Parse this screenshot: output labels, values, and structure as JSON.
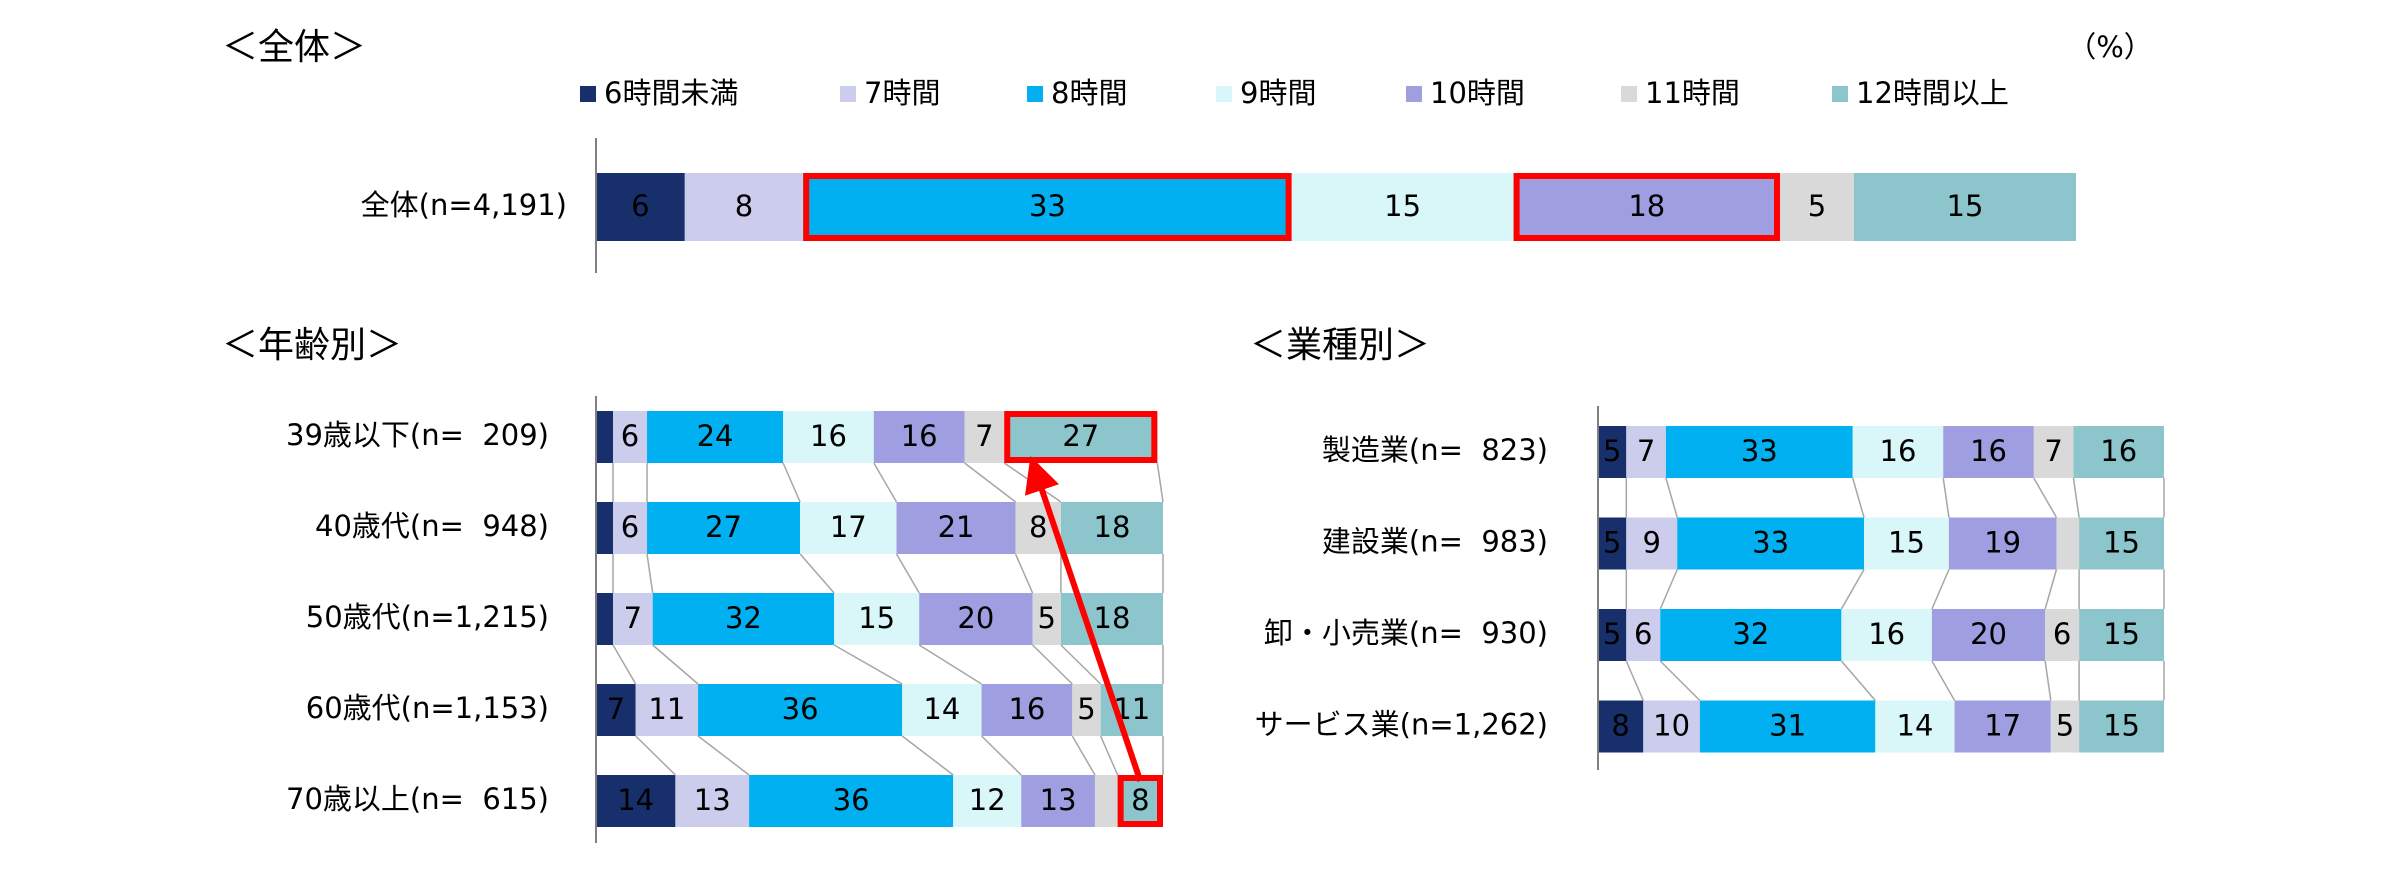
{
  "chart_data": [
    {
      "type": "bar",
      "orientation": "horizontal",
      "stacked": true,
      "title": "＜全体＞",
      "unit": "（%）",
      "categories": [
        "全体(n=4,191)"
      ],
      "series": [
        {
          "name": "6時間未満",
          "color": "#17306b",
          "values": [
            6
          ],
          "value_labels": [
            "6"
          ]
        },
        {
          "name": "7時間",
          "color": "#ccccec",
          "values": [
            8
          ],
          "value_labels": [
            "8"
          ]
        },
        {
          "name": "8時間",
          "color": "#00b0f0",
          "values": [
            33
          ],
          "value_labels": [
            "33"
          ]
        },
        {
          "name": "9時間",
          "color": "#d9f6f8",
          "values": [
            15
          ],
          "value_labels": [
            "15"
          ]
        },
        {
          "name": "10時間",
          "color": "#9e9ee0",
          "values": [
            18
          ],
          "value_labels": [
            "18"
          ]
        },
        {
          "name": "11時間",
          "color": "#d9d9d9",
          "values": [
            5
          ],
          "value_labels": [
            "5"
          ]
        },
        {
          "name": "12時間以上",
          "color": "#8cc6cc",
          "values": [
            15
          ],
          "value_labels": [
            "15"
          ]
        }
      ],
      "xlim": [
        0,
        100
      ],
      "legend": "top",
      "highlight": [
        [
          2,
          0
        ],
        [
          4,
          0
        ]
      ]
    },
    {
      "type": "bar",
      "orientation": "horizontal",
      "stacked": true,
      "title": "＜年齢別＞",
      "categories": [
        "39歳以下(n=  209)",
        "40歳代(n=  948)",
        "50歳代(n=1,215)",
        "60歳代(n=1,153)",
        "70歳以上(n=  615)"
      ],
      "series": [
        {
          "color": "#17306b",
          "values": [
            3,
            3,
            3,
            7,
            14
          ],
          "value_labels": [
            null,
            null,
            null,
            "7",
            "14"
          ]
        },
        {
          "color": "#ccccec",
          "values": [
            6,
            6,
            7,
            11,
            13
          ],
          "value_labels": [
            "6",
            "6",
            "7",
            "11",
            "13"
          ]
        },
        {
          "color": "#00b0f0",
          "values": [
            24,
            27,
            32,
            36,
            36
          ],
          "value_labels": [
            "24",
            "27",
            "32",
            "36",
            "36"
          ]
        },
        {
          "color": "#d9f6f8",
          "values": [
            16,
            17,
            15,
            14,
            12
          ],
          "value_labels": [
            "16",
            "17",
            "15",
            "14",
            "12"
          ]
        },
        {
          "color": "#9e9ee0",
          "values": [
            16,
            21,
            20,
            16,
            13
          ],
          "value_labels": [
            "16",
            "21",
            "20",
            "16",
            "13"
          ]
        },
        {
          "color": "#d9d9d9",
          "values": [
            7,
            8,
            5,
            5,
            4
          ],
          "value_labels": [
            "7",
            "8",
            "5",
            "5",
            null
          ]
        },
        {
          "color": "#8cc6cc",
          "values": [
            27,
            18,
            18,
            11,
            8
          ],
          "value_labels": [
            "27",
            "18",
            "18",
            "11",
            "8"
          ]
        }
      ],
      "xlim": [
        0,
        100
      ],
      "highlight": [
        [
          6,
          0
        ],
        [
          6,
          4
        ]
      ],
      "arrow": true
    },
    {
      "type": "bar",
      "orientation": "horizontal",
      "stacked": true,
      "title": "＜業種別＞",
      "categories": [
        "製造業(n=  823)",
        "建設業(n=  983)",
        "卸・小売業(n=  930)",
        "サービス業(n=1,262)"
      ],
      "series": [
        {
          "color": "#17306b",
          "values": [
            5,
            5,
            5,
            8
          ],
          "value_labels": [
            "5",
            "5",
            "5",
            "8"
          ]
        },
        {
          "color": "#ccccec",
          "values": [
            7,
            9,
            6,
            10
          ],
          "value_labels": [
            "7",
            "9",
            "6",
            "10"
          ]
        },
        {
          "color": "#00b0f0",
          "values": [
            33,
            33,
            32,
            31
          ],
          "value_labels": [
            "33",
            "33",
            "32",
            "31"
          ]
        },
        {
          "color": "#d9f6f8",
          "values": [
            16,
            15,
            16,
            14
          ],
          "value_labels": [
            "16",
            "15",
            "16",
            "14"
          ]
        },
        {
          "color": "#9e9ee0",
          "values": [
            16,
            19,
            20,
            17
          ],
          "value_labels": [
            "16",
            "19",
            "20",
            "17"
          ]
        },
        {
          "color": "#d9d9d9",
          "values": [
            7,
            4,
            6,
            5
          ],
          "value_labels": [
            "7",
            null,
            "6",
            "5"
          ]
        },
        {
          "color": "#8cc6cc",
          "values": [
            16,
            15,
            15,
            15
          ],
          "value_labels": [
            "16",
            "15",
            "15",
            "15"
          ]
        }
      ],
      "xlim": [
        0,
        100
      ]
    }
  ]
}
